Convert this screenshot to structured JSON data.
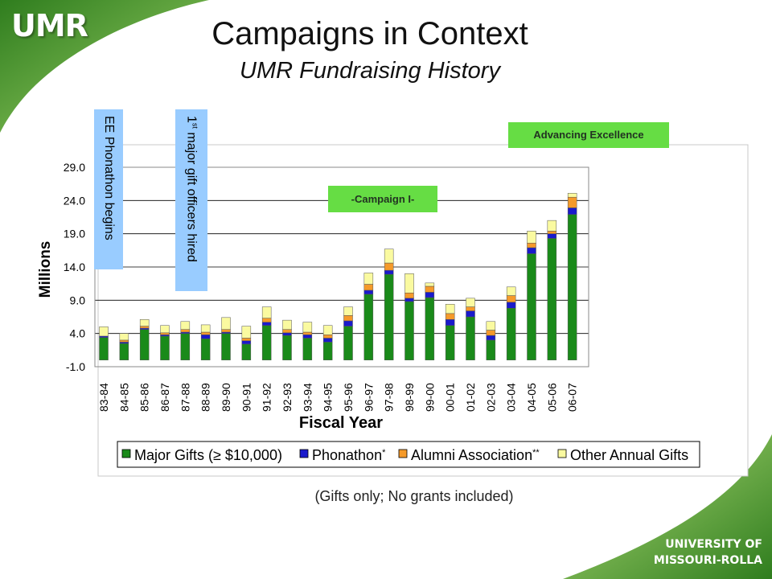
{
  "slide": {
    "logo_text": "UMR",
    "title": "Campaigns in Context",
    "subtitle": "UMR Fundraising History",
    "note": "(Gifts only; No grants included)",
    "university_logo_line1": "UNIVERSITY OF",
    "university_logo_line2": "MISSOURI-ROLLA"
  },
  "annotations": {
    "ee_phonathon": "EE Phonathon begins",
    "gift_officers_sup": "st",
    "gift_officers_num": "1",
    "gift_officers_rest": " major gift officers hired",
    "campaign1": "-Campaign I-",
    "advancing": "Advancing Excellence"
  },
  "colors": {
    "major": "#1a8a1a",
    "phonathon": "#1a1acc",
    "alumni": "#f59a2a",
    "other": "#fafaa0",
    "annotation_blue": "#99ccff",
    "annotation_green": "#66dd44"
  },
  "chart_data": {
    "type": "bar",
    "stacked": true,
    "title": "",
    "xlabel": "Fiscal Year",
    "ylabel": "Millions",
    "ylim": [
      -1.0,
      29.0
    ],
    "yticks": [
      "29.0",
      "24.0",
      "19.0",
      "14.0",
      "9.0",
      "4.0",
      "-1.0"
    ],
    "grid": true,
    "legend_position": "bottom",
    "categories": [
      "83-84",
      "84-85",
      "85-86",
      "86-87",
      "87-88",
      "88-89",
      "89-90",
      "90-91",
      "91-92",
      "92-93",
      "93-94",
      "94-95",
      "95-96",
      "96-97",
      "97-98",
      "98-99",
      "99-00",
      "00-01",
      "01-02",
      "02-03",
      "03-04",
      "04-05",
      "05-06",
      "06-07"
    ],
    "series": [
      {
        "name": "Major Gifts (≥ $10,000)",
        "color_key": "major",
        "values": [
          3.4,
          2.5,
          4.6,
          3.6,
          4.0,
          3.2,
          4.0,
          2.4,
          5.2,
          3.7,
          3.3,
          2.7,
          5.1,
          9.9,
          12.9,
          8.8,
          9.4,
          5.2,
          6.5,
          3.0,
          7.8,
          16.0,
          18.3,
          21.9
        ]
      },
      {
        "name": "Phonathon",
        "marker": "*",
        "color_key": "phonathon",
        "values": [
          0.2,
          0.2,
          0.2,
          0.2,
          0.2,
          0.6,
          0.2,
          0.5,
          0.5,
          0.4,
          0.5,
          0.6,
          0.8,
          0.6,
          0.6,
          0.5,
          0.8,
          0.9,
          0.9,
          0.7,
          0.9,
          0.9,
          0.7,
          1.0
        ]
      },
      {
        "name": "Alumni Association",
        "marker": "**",
        "color_key": "alumni",
        "values": [
          0.0,
          0.3,
          0.3,
          0.3,
          0.4,
          0.4,
          0.4,
          0.4,
          0.6,
          0.5,
          0.4,
          0.5,
          0.8,
          0.9,
          1.1,
          0.8,
          0.9,
          0.9,
          0.6,
          0.8,
          1.0,
          0.7,
          0.4,
          1.6
        ]
      },
      {
        "name": "Other Annual Gifts",
        "color_key": "other",
        "values": [
          1.4,
          1.0,
          1.0,
          1.1,
          1.2,
          1.1,
          1.8,
          1.8,
          1.7,
          1.4,
          1.5,
          1.4,
          1.3,
          1.7,
          2.1,
          2.9,
          0.5,
          1.4,
          1.3,
          1.3,
          1.3,
          1.8,
          1.6,
          0.6
        ]
      }
    ]
  }
}
